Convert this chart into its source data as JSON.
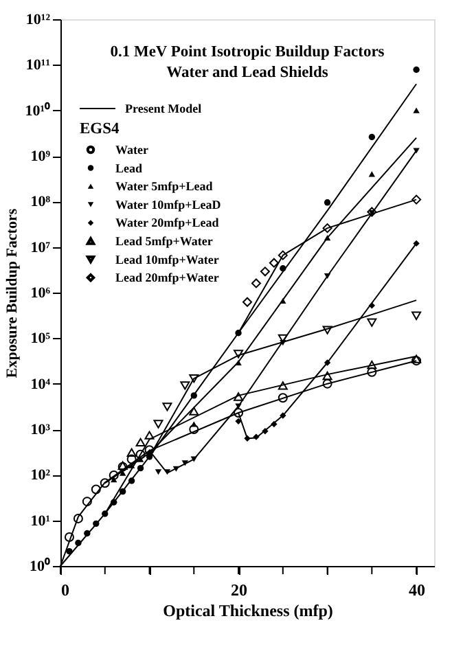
{
  "chart_data": {
    "type": "scatter",
    "title": "0.1 MeV Point Isotropic Buildup Factors",
    "subtitle": "Water and Lead Shields",
    "xlabel": "Optical Thickness (mfp)",
    "ylabel": "Exposure Buildup Factors",
    "legend_title": "EGS4",
    "legend": "top left",
    "log": "y",
    "grid": false,
    "xlim": [
      0,
      42
    ],
    "ylim": [
      1,
      1000000000000.0
    ],
    "xticks": [
      0,
      {
        "value": 5,
        "label": null
      },
      {
        "value": 10,
        "label": null
      },
      {
        "value": 15,
        "label": null
      },
      20,
      {
        "value": 25,
        "label": null
      },
      {
        "value": 30,
        "label": null
      },
      {
        "value": 35,
        "label": null
      },
      40
    ],
    "yticks": [
      {
        "value": 1,
        "label": "10⁰"
      },
      {
        "value": 10,
        "label": "10¹"
      },
      {
        "value": 100,
        "label": "10²"
      },
      {
        "value": 1000.0,
        "label": "10³"
      },
      {
        "value": 10000.0,
        "label": "10⁴"
      },
      {
        "value": 100000.0,
        "label": "10⁵"
      },
      {
        "value": 1000000.0,
        "label": "10⁶"
      },
      {
        "value": 10000000.0,
        "label": "10⁷"
      },
      {
        "value": 100000000.0,
        "label": "10⁸"
      },
      {
        "value": 1000000000.0,
        "label": "10⁹"
      },
      {
        "value": 10000000000.0,
        "label": "10¹⁰"
      },
      {
        "value": 100000000000.0,
        "label": "10¹¹"
      },
      {
        "value": 1000000000000.0,
        "label": "10¹²"
      }
    ],
    "series": [
      {
        "type": "line",
        "name": "Present Model",
        "color": "#000000",
        "marker": "none",
        "line_style": "solid",
        "x": [
          0,
          2,
          5,
          10,
          20,
          30,
          40
        ],
        "values": [
          1,
          12,
          68,
          340,
          2300,
          10000.0,
          32000.0
        ]
      },
      {
        "type": "line",
        "color": "#000000",
        "marker": "none",
        "line_style": "solid",
        "x": [
          0,
          5,
          10,
          20,
          30,
          40
        ],
        "values": [
          1,
          14,
          250,
          130000.0,
          63000000.0,
          38000000000.0
        ]
      },
      {
        "type": "line",
        "color": "#000000",
        "marker": "none",
        "line_style": "solid",
        "x": [
          5,
          10,
          20,
          30,
          40
        ],
        "values": [
          66,
          300,
          30000.0,
          16000000.0,
          2500000000.0
        ]
      },
      {
        "type": "line",
        "color": "#000000",
        "marker": "none",
        "line_style": "solid",
        "x": [
          10,
          12,
          15,
          20,
          30,
          40
        ],
        "values": [
          340,
          110,
          220,
          3200,
          2300000.0,
          1300000000.0
        ]
      },
      {
        "type": "line",
        "color": "#000000",
        "marker": "none",
        "line_style": "solid",
        "x": [
          20,
          21,
          22,
          25,
          30,
          40
        ],
        "values": [
          2300,
          630,
          650,
          2000,
          29000.0,
          12000000.0
        ]
      },
      {
        "type": "line",
        "color": "#000000",
        "marker": "none",
        "line_style": "solid",
        "x": [
          5,
          10,
          20,
          30,
          40
        ],
        "values": [
          14,
          600,
          5500,
          16000.0,
          40000.0
        ]
      },
      {
        "type": "line",
        "color": "#000000",
        "marker": "none",
        "line_style": "solid",
        "x": [
          10,
          15,
          20,
          30,
          40
        ],
        "values": [
          250,
          13000.0,
          42000.0,
          160000.0,
          680000.0
        ]
      },
      {
        "type": "line",
        "color": "#000000",
        "marker": "none",
        "line_style": "solid",
        "x": [
          20,
          25,
          30,
          40
        ],
        "values": [
          130000.0,
          6600000.0,
          26000000.0,
          110000000.0
        ]
      },
      {
        "name": "Water",
        "color": "#000000",
        "marker": "circle-open",
        "x": [
          1,
          2,
          3,
          4,
          5,
          6,
          7,
          8,
          9,
          10,
          15,
          20,
          25,
          30,
          35,
          40
        ],
        "values": [
          4.3,
          11,
          26,
          48,
          66,
          98,
          150,
          220,
          280,
          350,
          1000,
          2300,
          4900,
          10000.0,
          18000.0,
          32000.0
        ]
      },
      {
        "name": "Lead",
        "color": "#000000",
        "marker": "circle",
        "x": [
          1,
          2,
          3,
          4,
          5,
          6,
          7,
          8,
          9,
          10,
          15,
          20,
          25,
          30,
          35,
          40
        ],
        "values": [
          2.1,
          3.2,
          5.2,
          8.5,
          14,
          25,
          43,
          74,
          140,
          250,
          5500,
          130000.0,
          3400000.0,
          95000000.0,
          2600000000.0,
          78000000000.0
        ]
      },
      {
        "name": "Water  5mfp+Lead",
        "color": "#000000",
        "marker": "triangle",
        "x": [
          6,
          7,
          8,
          9,
          10,
          15,
          20,
          25,
          30,
          35,
          40
        ],
        "values": [
          79,
          110,
          160,
          220,
          320,
          1300,
          29000.0,
          660000.0,
          16000000.0,
          400000000.0,
          10000000000.0
        ]
      },
      {
        "name": "Water  10mfp+LeaD",
        "color": "#000000",
        "marker": "triangle-down",
        "x": [
          11,
          12,
          13,
          14,
          15,
          20,
          25,
          30,
          35,
          40
        ],
        "values": [
          115,
          115,
          135,
          180,
          220,
          3200,
          79000.0,
          2300000.0,
          56000000.0,
          1300000000.0
        ]
      },
      {
        "name": "Water  20mfp+Lead",
        "color": "#000000",
        "marker": "diamond",
        "x": [
          20,
          21,
          22,
          23,
          24,
          25,
          30,
          35,
          40
        ],
        "values": [
          1500,
          630,
          680,
          910,
          1300,
          2000,
          29000.0,
          520000.0,
          12000000.0
        ]
      },
      {
        "name": "Lead  5mfp+Water",
        "color": "#000000",
        "marker": "triangle-open",
        "x": [
          7,
          8,
          9,
          10,
          15,
          20,
          25,
          30,
          35,
          40
        ],
        "values": [
          160,
          310,
          520,
          740,
          2500,
          5200,
          9100,
          15000.0,
          26000.0,
          35000.0
        ]
      },
      {
        "name": "Lead  10mfp+Water",
        "color": "#000000",
        "marker": "triangle-down-open",
        "x": [
          11,
          12,
          14,
          15,
          20,
          25,
          30,
          35,
          40
        ],
        "values": [
          1300,
          3100,
          9100,
          13000.0,
          45000.0,
          98000.0,
          150000.0,
          220000.0,
          310000.0
        ]
      },
      {
        "name": "Lead  20mfp+Water",
        "color": "#000000",
        "marker": "diamond-open",
        "x": [
          21,
          22,
          23,
          24,
          25,
          30,
          35,
          40
        ],
        "values": [
          620000.0,
          1600000.0,
          2900000.0,
          4500000.0,
          6600000.0,
          26000000.0,
          59000000.0,
          110000000.0
        ]
      }
    ]
  }
}
